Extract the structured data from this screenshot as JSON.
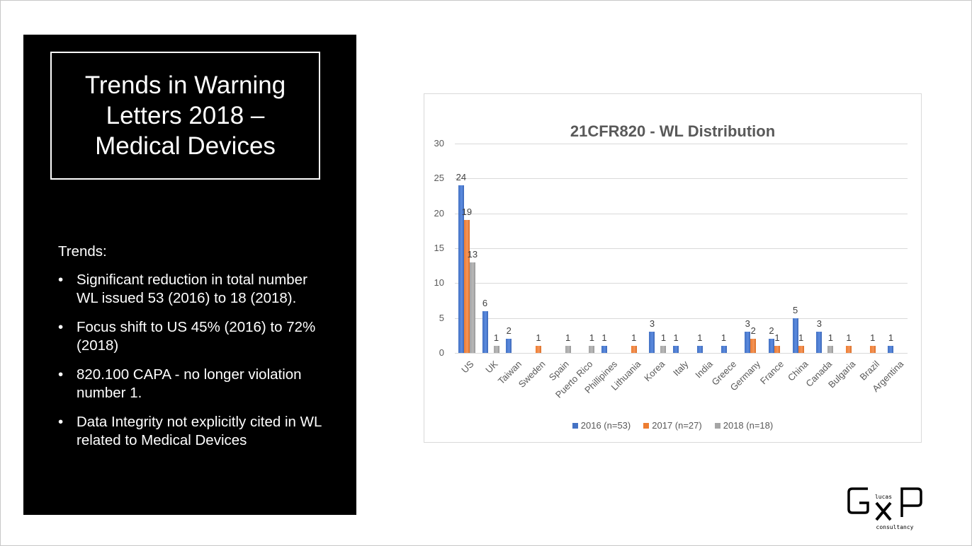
{
  "slide": {
    "title": "Trends in Warning Letters 2018 – Medical Devices",
    "trends_heading": "Trends:",
    "bullets": [
      "Significant reduction in total number WL issued 53 (2016) to 18 (2018).",
      "Focus shift to US 45% (2016) to 72% (2018)",
      "820.100 CAPA - no longer violation number 1.",
      "Data Integrity not explicitly cited in WL related to Medical Devices"
    ],
    "bullet_glyph": "•"
  },
  "logo": {
    "top_text": "lucas",
    "bottom_text": "consultancy",
    "letters": "GXP"
  },
  "colors": {
    "series_2016": "#4472c4",
    "series_2017": "#ed7d31",
    "series_2018": "#a5a5a5",
    "panel_bg": "#000000",
    "gridline": "#d9d9d9"
  },
  "chart_data": {
    "type": "bar",
    "title": "21CFR820 - WL Distribution",
    "xlabel": "",
    "ylabel": "",
    "ylim": [
      0,
      30
    ],
    "yticks": [
      0,
      5,
      10,
      15,
      20,
      25,
      30
    ],
    "grid": true,
    "legend_position": "bottom",
    "categories": [
      "US",
      "UK",
      "Taiwan",
      "Sweden",
      "Spain",
      "Puerto Rico",
      "Phillipines",
      "Lithuania",
      "Korea",
      "Italy",
      "India",
      "Greece",
      "Germany",
      "France",
      "China",
      "Canada",
      "Bulgaria",
      "Brazil",
      "Argentina"
    ],
    "series": [
      {
        "name": "2016 (n=53)",
        "values": [
          24,
          6,
          2,
          0,
          0,
          0,
          1,
          0,
          3,
          1,
          1,
          1,
          3,
          2,
          5,
          3,
          0,
          0,
          1
        ]
      },
      {
        "name": "2017 (n=27)",
        "values": [
          19,
          0,
          0,
          1,
          0,
          0,
          0,
          1,
          0,
          0,
          0,
          0,
          2,
          1,
          1,
          0,
          1,
          1,
          0
        ]
      },
      {
        "name": "2018 (n=18)",
        "values": [
          13,
          1,
          0,
          0,
          1,
          1,
          0,
          0,
          1,
          0,
          0,
          0,
          0,
          0,
          0,
          1,
          0,
          0,
          0
        ]
      }
    ]
  }
}
